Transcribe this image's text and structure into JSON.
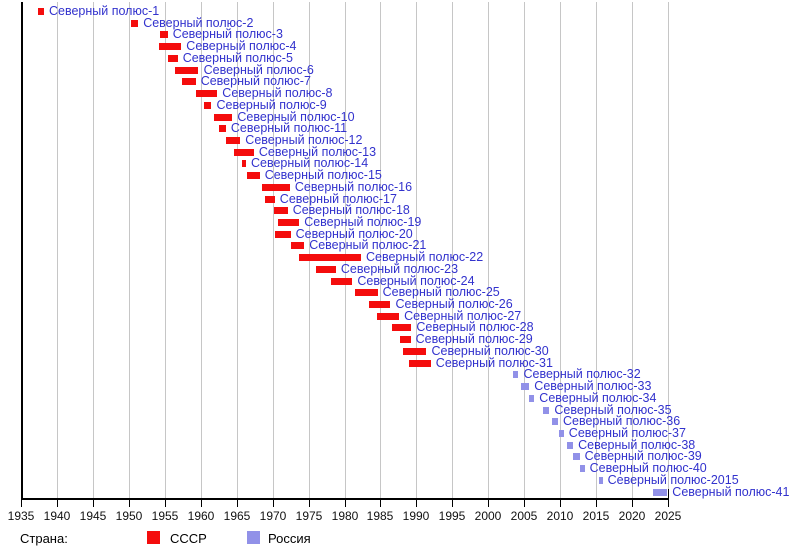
{
  "chart_data": {
    "type": "bar",
    "variant": "horizontal-timeline-gantt",
    "title": "",
    "x_axis": {
      "min": 1935,
      "max": 2025,
      "tick_step": 5,
      "tick_labels": [
        "1935",
        "1940",
        "1945",
        "1950",
        "1955",
        "1960",
        "1965",
        "1970",
        "1975",
        "1980",
        "1985",
        "1990",
        "1995",
        "2000",
        "2005",
        "2010",
        "2015",
        "2020",
        "2025"
      ],
      "grid": true
    },
    "legend": {
      "title": "Страна:",
      "position": "bottom",
      "items": [
        {
          "label": "СССР",
          "color": "#f40d0d"
        },
        {
          "label": "Россия",
          "color": "#9191e8"
        }
      ]
    },
    "stations": [
      {
        "label": "Северный полюс-1",
        "country": "СССР",
        "start": 1937.3,
        "end": 1938.2
      },
      {
        "label": "Северный полюс-2",
        "country": "СССР",
        "start": 1950.3,
        "end": 1951.3
      },
      {
        "label": "Северный полюс-3",
        "country": "СССР",
        "start": 1954.3,
        "end": 1955.4
      },
      {
        "label": "Северный полюс-4",
        "country": "СССР",
        "start": 1954.2,
        "end": 1957.3
      },
      {
        "label": "Северный полюс-5",
        "country": "СССР",
        "start": 1955.4,
        "end": 1956.8
      },
      {
        "label": "Северный полюс-6",
        "country": "СССР",
        "start": 1956.4,
        "end": 1959.7
      },
      {
        "label": "Северный полюс-7",
        "country": "СССР",
        "start": 1957.4,
        "end": 1959.3
      },
      {
        "label": "Северный полюс-8",
        "country": "СССР",
        "start": 1959.4,
        "end": 1962.3
      },
      {
        "label": "Северный полюс-9",
        "country": "СССР",
        "start": 1960.5,
        "end": 1961.5
      },
      {
        "label": "Северный полюс-10",
        "country": "СССР",
        "start": 1961.9,
        "end": 1964.4
      },
      {
        "label": "Северный полюс-11",
        "country": "СССР",
        "start": 1962.5,
        "end": 1963.5
      },
      {
        "label": "Северный полюс-12",
        "country": "СССР",
        "start": 1963.5,
        "end": 1965.5
      },
      {
        "label": "Северный полюс-13",
        "country": "СССР",
        "start": 1964.6,
        "end": 1967.4
      },
      {
        "label": "Северный полюс-14",
        "country": "СССР",
        "start": 1965.7,
        "end": 1966.3
      },
      {
        "label": "Северный полюс-15",
        "country": "СССР",
        "start": 1966.4,
        "end": 1968.2
      },
      {
        "label": "Северный полюс-16",
        "country": "СССР",
        "start": 1968.5,
        "end": 1972.4
      },
      {
        "label": "Северный полюс-17",
        "country": "СССР",
        "start": 1968.9,
        "end": 1970.3
      },
      {
        "label": "Северный полюс-18",
        "country": "СССР",
        "start": 1970.2,
        "end": 1972.1
      },
      {
        "label": "Северный полюс-19",
        "country": "СССР",
        "start": 1970.8,
        "end": 1973.7
      },
      {
        "label": "Северный полюс-20",
        "country": "СССР",
        "start": 1970.3,
        "end": 1972.5
      },
      {
        "label": "Северный полюс-21",
        "country": "СССР",
        "start": 1972.6,
        "end": 1974.4
      },
      {
        "label": "Северный полюс-22",
        "country": "СССР",
        "start": 1973.7,
        "end": 1982.3
      },
      {
        "label": "Северный полюс-23",
        "country": "СССР",
        "start": 1976.0,
        "end": 1978.8
      },
      {
        "label": "Северный полюс-24",
        "country": "СССР",
        "start": 1978.1,
        "end": 1981.1
      },
      {
        "label": "Северный полюс-25",
        "country": "СССР",
        "start": 1981.4,
        "end": 1984.6
      },
      {
        "label": "Северный полюс-26",
        "country": "СССР",
        "start": 1983.4,
        "end": 1986.4
      },
      {
        "label": "Северный полюс-27",
        "country": "СССР",
        "start": 1984.5,
        "end": 1987.6
      },
      {
        "label": "Северный полюс-28",
        "country": "СССР",
        "start": 1986.6,
        "end": 1989.3
      },
      {
        "label": "Северный полюс-29",
        "country": "СССР",
        "start": 1987.7,
        "end": 1989.2
      },
      {
        "label": "Северный полюс-30",
        "country": "СССР",
        "start": 1988.1,
        "end": 1991.4
      },
      {
        "label": "Северный полюс-31",
        "country": "СССР",
        "start": 1988.9,
        "end": 1992.0
      },
      {
        "label": "Северный полюс-32",
        "country": "Россия",
        "start": 2003.4,
        "end": 2004.2
      },
      {
        "label": "Северный полюс-33",
        "country": "Россия",
        "start": 2004.6,
        "end": 2005.7
      },
      {
        "label": "Северный полюс-34",
        "country": "Россия",
        "start": 2005.6,
        "end": 2006.4
      },
      {
        "label": "Северный полюс-35",
        "country": "Россия",
        "start": 2007.6,
        "end": 2008.5
      },
      {
        "label": "Северный полюс-36",
        "country": "Россия",
        "start": 2008.8,
        "end": 2009.7
      },
      {
        "label": "Северный полюс-37",
        "country": "Россия",
        "start": 2009.8,
        "end": 2010.5
      },
      {
        "label": "Северный полюс-38",
        "country": "Россия",
        "start": 2010.9,
        "end": 2011.8
      },
      {
        "label": "Северный полюс-39",
        "country": "Россия",
        "start": 2011.8,
        "end": 2012.7
      },
      {
        "label": "Северный полюс-40",
        "country": "Россия",
        "start": 2012.7,
        "end": 2013.4
      },
      {
        "label": "Северный полюс-2015",
        "country": "Россия",
        "start": 2015.4,
        "end": 2015.9
      },
      {
        "label": "Северный полюс-41",
        "country": "Россия",
        "start": 2022.9,
        "end": 2024.9
      }
    ]
  },
  "colors": {
    "station_label_text": "#3232cd",
    "grid": "#c6c6c6",
    "axis": "#000000",
    "background": "#ffffff"
  }
}
